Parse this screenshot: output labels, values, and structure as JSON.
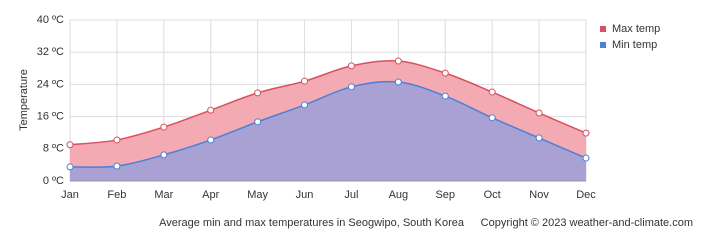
{
  "chart_data": {
    "type": "area",
    "y_label": "Temperature",
    "categories": [
      "Jan",
      "Feb",
      "Mar",
      "Apr",
      "May",
      "Jun",
      "Jul",
      "Aug",
      "Sep",
      "Oct",
      "Nov",
      "Dec"
    ],
    "series": [
      {
        "name": "Max temp",
        "color": "#d9505e",
        "fill": "#f4aab2",
        "values": [
          9.0,
          10.2,
          13.4,
          17.6,
          21.9,
          24.8,
          28.6,
          29.8,
          26.8,
          22.1,
          16.9,
          11.9
        ]
      },
      {
        "name": "Min temp",
        "color": "#4a80d8",
        "fill": "#a9a1d3",
        "values": [
          3.5,
          3.7,
          6.5,
          10.2,
          14.7,
          18.9,
          23.4,
          24.6,
          21.1,
          15.7,
          10.7,
          5.7
        ]
      }
    ],
    "ylim": [
      0,
      40
    ],
    "yticks": [
      {
        "value": 0,
        "label": "0 ºC"
      },
      {
        "value": 8,
        "label": "8 ºC"
      },
      {
        "value": 16,
        "label": "16 ºC"
      },
      {
        "value": 24,
        "label": "24 ºC"
      },
      {
        "value": 32,
        "label": "32 ºC"
      },
      {
        "value": 40,
        "label": "40 ºC"
      }
    ],
    "grid": true,
    "legend": "top-right",
    "caption": "Average min and max temperatures in Seogwipo, South Korea",
    "copyright": "Copyright © 2023  weather-and-climate.com"
  }
}
